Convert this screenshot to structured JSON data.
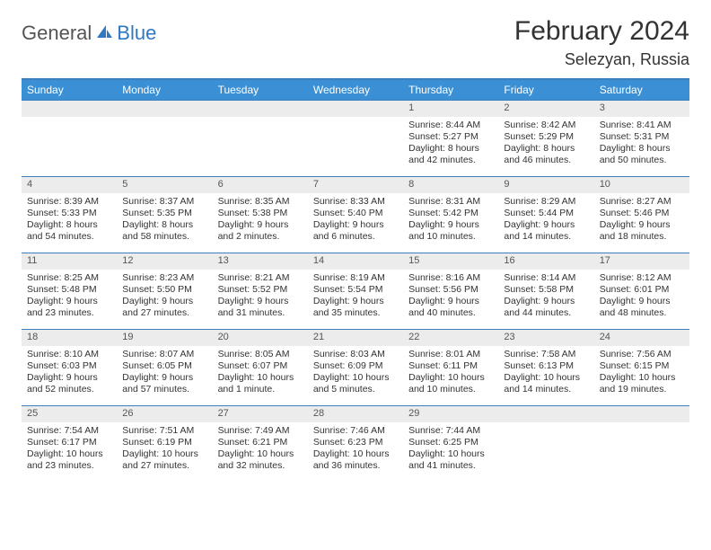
{
  "brand": {
    "part1": "General",
    "part2": "Blue"
  },
  "colors": {
    "header_bg": "#3b8fd4",
    "rule": "#3b7fbf",
    "daynum_bg": "#ececec"
  },
  "title": "February 2024",
  "location": "Selezyan, Russia",
  "day_names": [
    "Sunday",
    "Monday",
    "Tuesday",
    "Wednesday",
    "Thursday",
    "Friday",
    "Saturday"
  ],
  "labels": {
    "sunrise": "Sunrise:",
    "sunset": "Sunset:",
    "daylight": "Daylight:"
  },
  "weeks": [
    [
      null,
      null,
      null,
      null,
      {
        "n": "1",
        "sr": "8:44 AM",
        "ss": "5:27 PM",
        "dl": "8 hours and 42 minutes."
      },
      {
        "n": "2",
        "sr": "8:42 AM",
        "ss": "5:29 PM",
        "dl": "8 hours and 46 minutes."
      },
      {
        "n": "3",
        "sr": "8:41 AM",
        "ss": "5:31 PM",
        "dl": "8 hours and 50 minutes."
      }
    ],
    [
      {
        "n": "4",
        "sr": "8:39 AM",
        "ss": "5:33 PM",
        "dl": "8 hours and 54 minutes."
      },
      {
        "n": "5",
        "sr": "8:37 AM",
        "ss": "5:35 PM",
        "dl": "8 hours and 58 minutes."
      },
      {
        "n": "6",
        "sr": "8:35 AM",
        "ss": "5:38 PM",
        "dl": "9 hours and 2 minutes."
      },
      {
        "n": "7",
        "sr": "8:33 AM",
        "ss": "5:40 PM",
        "dl": "9 hours and 6 minutes."
      },
      {
        "n": "8",
        "sr": "8:31 AM",
        "ss": "5:42 PM",
        "dl": "9 hours and 10 minutes."
      },
      {
        "n": "9",
        "sr": "8:29 AM",
        "ss": "5:44 PM",
        "dl": "9 hours and 14 minutes."
      },
      {
        "n": "10",
        "sr": "8:27 AM",
        "ss": "5:46 PM",
        "dl": "9 hours and 18 minutes."
      }
    ],
    [
      {
        "n": "11",
        "sr": "8:25 AM",
        "ss": "5:48 PM",
        "dl": "9 hours and 23 minutes."
      },
      {
        "n": "12",
        "sr": "8:23 AM",
        "ss": "5:50 PM",
        "dl": "9 hours and 27 minutes."
      },
      {
        "n": "13",
        "sr": "8:21 AM",
        "ss": "5:52 PM",
        "dl": "9 hours and 31 minutes."
      },
      {
        "n": "14",
        "sr": "8:19 AM",
        "ss": "5:54 PM",
        "dl": "9 hours and 35 minutes."
      },
      {
        "n": "15",
        "sr": "8:16 AM",
        "ss": "5:56 PM",
        "dl": "9 hours and 40 minutes."
      },
      {
        "n": "16",
        "sr": "8:14 AM",
        "ss": "5:58 PM",
        "dl": "9 hours and 44 minutes."
      },
      {
        "n": "17",
        "sr": "8:12 AM",
        "ss": "6:01 PM",
        "dl": "9 hours and 48 minutes."
      }
    ],
    [
      {
        "n": "18",
        "sr": "8:10 AM",
        "ss": "6:03 PM",
        "dl": "9 hours and 52 minutes."
      },
      {
        "n": "19",
        "sr": "8:07 AM",
        "ss": "6:05 PM",
        "dl": "9 hours and 57 minutes."
      },
      {
        "n": "20",
        "sr": "8:05 AM",
        "ss": "6:07 PM",
        "dl": "10 hours and 1 minute."
      },
      {
        "n": "21",
        "sr": "8:03 AM",
        "ss": "6:09 PM",
        "dl": "10 hours and 5 minutes."
      },
      {
        "n": "22",
        "sr": "8:01 AM",
        "ss": "6:11 PM",
        "dl": "10 hours and 10 minutes."
      },
      {
        "n": "23",
        "sr": "7:58 AM",
        "ss": "6:13 PM",
        "dl": "10 hours and 14 minutes."
      },
      {
        "n": "24",
        "sr": "7:56 AM",
        "ss": "6:15 PM",
        "dl": "10 hours and 19 minutes."
      }
    ],
    [
      {
        "n": "25",
        "sr": "7:54 AM",
        "ss": "6:17 PM",
        "dl": "10 hours and 23 minutes."
      },
      {
        "n": "26",
        "sr": "7:51 AM",
        "ss": "6:19 PM",
        "dl": "10 hours and 27 minutes."
      },
      {
        "n": "27",
        "sr": "7:49 AM",
        "ss": "6:21 PM",
        "dl": "10 hours and 32 minutes."
      },
      {
        "n": "28",
        "sr": "7:46 AM",
        "ss": "6:23 PM",
        "dl": "10 hours and 36 minutes."
      },
      {
        "n": "29",
        "sr": "7:44 AM",
        "ss": "6:25 PM",
        "dl": "10 hours and 41 minutes."
      },
      null,
      null
    ]
  ]
}
